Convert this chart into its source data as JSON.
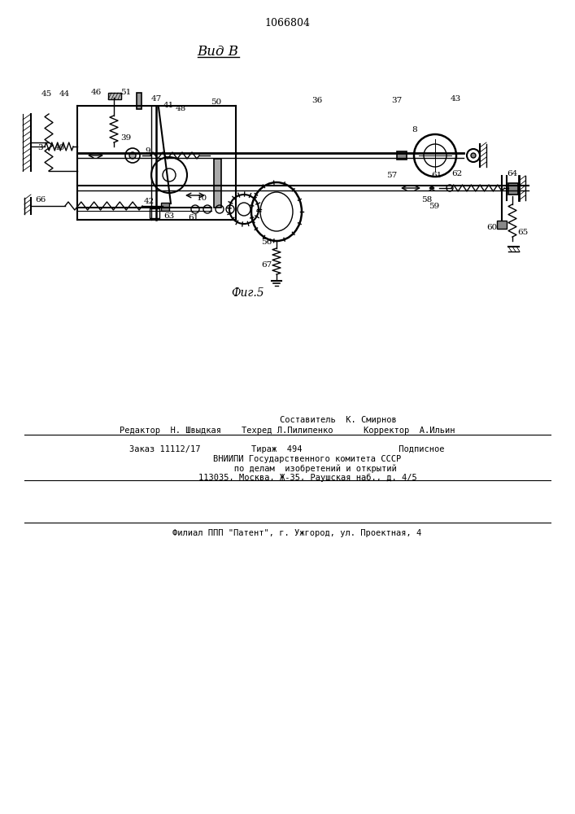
{
  "patent_number": "1066804",
  "view_label": "Вид В",
  "fig_label": "Фиг.5",
  "background_color": "#ffffff",
  "line_color": "#000000",
  "line_width": 1.0
}
